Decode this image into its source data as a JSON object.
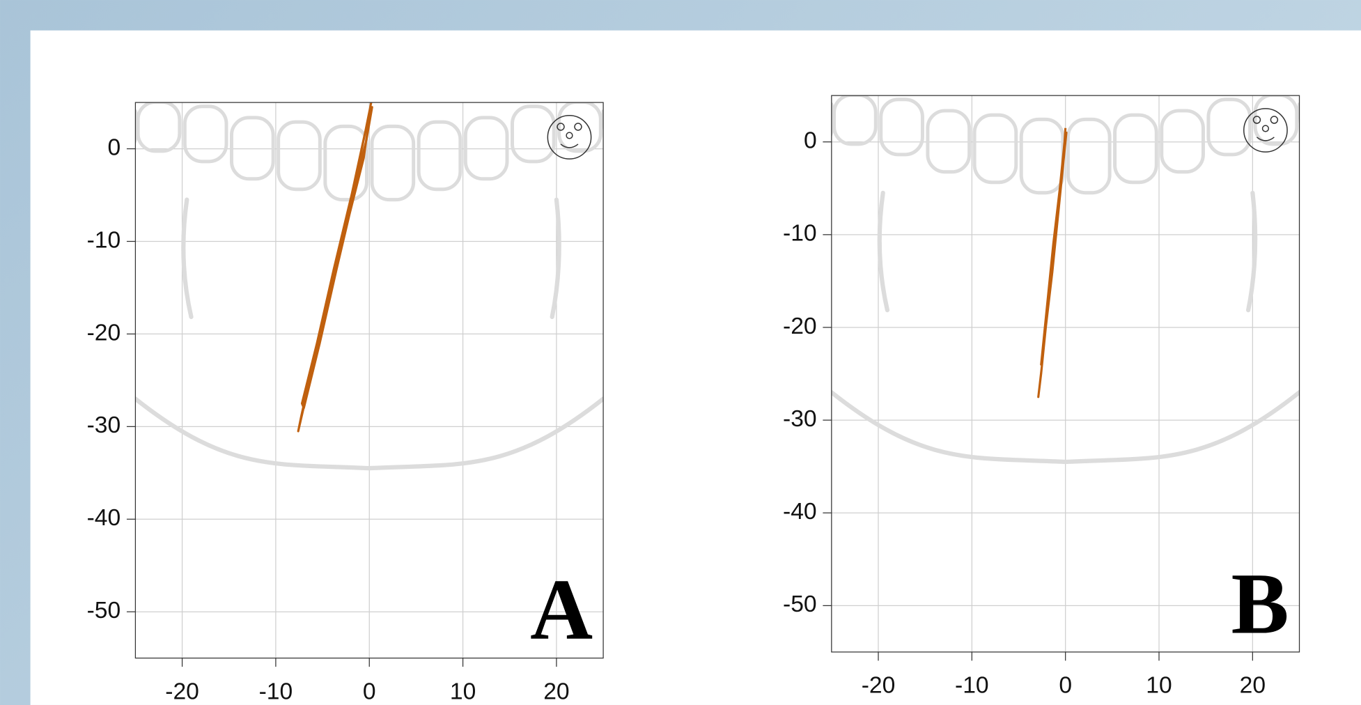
{
  "chart_data": [
    {
      "type": "line",
      "label": "A",
      "xlim": [
        -25,
        25
      ],
      "ylim": [
        -55,
        5
      ],
      "xticks": [
        -20,
        -10,
        0,
        10,
        20
      ],
      "yticks": [
        -50,
        -40,
        -30,
        -20,
        -10,
        0
      ],
      "grid": true,
      "series": [
        {
          "color": "#c0600e",
          "x": [
            0.2,
            -0.8,
            -1.9,
            -3.5,
            -5.2,
            -6.8,
            -7.6,
            -7.3,
            -6.0,
            -4.4,
            -3.0,
            -1.3,
            -0.3,
            0.3,
            -0.4,
            -1.9,
            -3.8,
            -5.6,
            -7.2,
            -7.0,
            -5.3,
            -3.5,
            -2.1,
            -0.6,
            0.1
          ],
          "values": [
            5,
            0,
            -5,
            -12,
            -20,
            -27,
            -30.5,
            -29,
            -23,
            -16,
            -10,
            -3,
            1,
            4.5,
            2,
            -5,
            -13,
            -21,
            -27.5,
            -28,
            -21,
            -13,
            -7,
            -1,
            4
          ]
        }
      ]
    },
    {
      "type": "line",
      "label": "B",
      "xlim": [
        -25,
        25
      ],
      "ylim": [
        -55,
        5
      ],
      "xticks": [
        -20,
        -10,
        0,
        10,
        20
      ],
      "yticks": [
        -50,
        -40,
        -30,
        -20,
        -10,
        0
      ],
      "grid": true,
      "series": [
        {
          "color": "#c0600e",
          "x": [
            0,
            -0.3,
            -0.8,
            -1.4,
            -2.1,
            -2.6,
            -2.9,
            -2.5,
            -1.8,
            -1.2,
            -0.6,
            -0.2,
            0.1,
            -0.1,
            -0.6,
            -1.3,
            -2.0,
            -2.6,
            -2.3,
            -1.5,
            -0.8,
            -0.2
          ],
          "values": [
            1.5,
            -3,
            -8,
            -14,
            -20,
            -25,
            -27.5,
            -24,
            -17,
            -11,
            -6,
            -2,
            1,
            0,
            -5,
            -11,
            -18,
            -24,
            -22,
            -14,
            -7,
            -1
          ]
        }
      ]
    }
  ]
}
